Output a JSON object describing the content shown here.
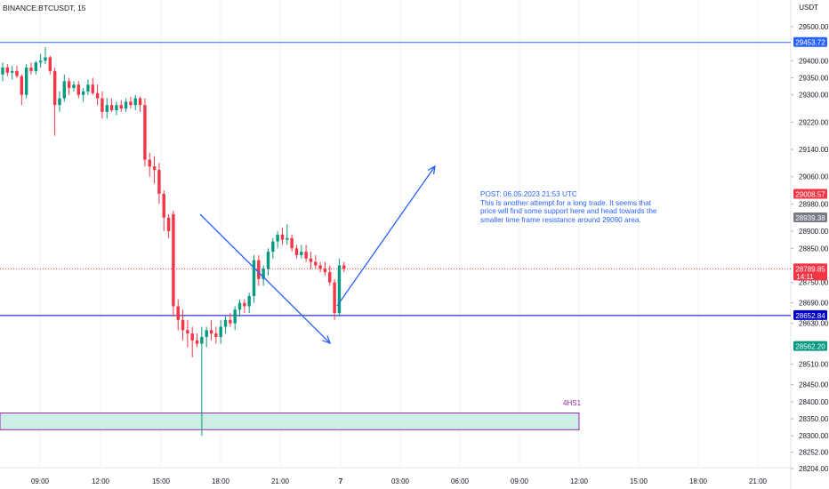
{
  "chart_data": {
    "type": "candlestick",
    "title": "BINANCE:BTCUSDT, 15",
    "currency": "USDT",
    "ylim": [
      28180,
      29570
    ],
    "y_ticks": [
      "29500.00",
      "29400.00",
      "29350.00",
      "29300.00",
      "29220.00",
      "29140.00",
      "29060.00",
      "28980.00",
      "28900.00",
      "28850.00",
      "28750.00",
      "28690.00",
      "28630.00",
      "28510.00",
      "28450.00",
      "28400.00",
      "28350.00",
      "28300.00",
      "28252.00",
      "28204.00"
    ],
    "x_labels": [
      "09:00",
      "12:00",
      "15:00",
      "18:00",
      "21:00",
      "7",
      "03:00",
      "06:00",
      "09:00",
      "12:00",
      "15:00",
      "18:00",
      "21:00"
    ],
    "price_badges": [
      {
        "value": "29453.72",
        "color": "#2962ff"
      },
      {
        "value": "29008.57",
        "color": "#f23645"
      },
      {
        "value": "28939.38",
        "color": "#787b86"
      },
      {
        "value": "28789.85",
        "sub": "14:11",
        "color": "#f23645"
      },
      {
        "value": "28652.84",
        "color": "#0000c8"
      },
      {
        "value": "28562.20",
        "color": "#089981"
      }
    ],
    "horizontal_lines": [
      29453.72,
      28652.84
    ],
    "current_price": 28789.85,
    "candles": [
      [
        29360,
        29395,
        29340,
        29380
      ],
      [
        29380,
        29390,
        29355,
        29365
      ],
      [
        29365,
        29385,
        29345,
        29370
      ],
      [
        29370,
        29385,
        29350,
        29355
      ],
      [
        29355,
        29360,
        29270,
        29300
      ],
      [
        29300,
        29390,
        29290,
        29380
      ],
      [
        29380,
        29395,
        29360,
        29370
      ],
      [
        29370,
        29400,
        29360,
        29395
      ],
      [
        29395,
        29420,
        29380,
        29400
      ],
      [
        29400,
        29440,
        29390,
        29410
      ],
      [
        29410,
        29415,
        29360,
        29370
      ],
      [
        29370,
        29380,
        29180,
        29270
      ],
      [
        29270,
        29310,
        29250,
        29290
      ],
      [
        29290,
        29360,
        29280,
        29340
      ],
      [
        29340,
        29350,
        29300,
        29320
      ],
      [
        29320,
        29340,
        29310,
        29330
      ],
      [
        29330,
        29340,
        29290,
        29300
      ],
      [
        29300,
        29320,
        29280,
        29310
      ],
      [
        29310,
        29345,
        29300,
        29330
      ],
      [
        29330,
        29350,
        29300,
        29305
      ],
      [
        29305,
        29330,
        29270,
        29290
      ],
      [
        29290,
        29310,
        29230,
        29250
      ],
      [
        29250,
        29290,
        29230,
        29270
      ],
      [
        29270,
        29290,
        29250,
        29255
      ],
      [
        29255,
        29280,
        29240,
        29270
      ],
      [
        29270,
        29285,
        29250,
        29260
      ],
      [
        29260,
        29290,
        29250,
        29280
      ],
      [
        29280,
        29295,
        29260,
        29270
      ],
      [
        29270,
        29300,
        29255,
        29290
      ],
      [
        29290,
        29295,
        29250,
        29270
      ],
      [
        29270,
        29290,
        29090,
        29110
      ],
      [
        29110,
        29130,
        29060,
        29090
      ],
      [
        29090,
        29120,
        29040,
        29080
      ],
      [
        29080,
        29100,
        28980,
        29010
      ],
      [
        29010,
        29020,
        28900,
        28940
      ],
      [
        28940,
        28950,
        28880,
        28900
      ],
      [
        28950,
        28960,
        28650,
        28680
      ],
      [
        28680,
        28700,
        28610,
        28640
      ],
      [
        28640,
        28670,
        28580,
        28610
      ],
      [
        28610,
        28640,
        28560,
        28600
      ],
      [
        28600,
        28620,
        28530,
        28580
      ],
      [
        28580,
        28600,
        28560,
        28570
      ],
      [
        28570,
        28620,
        28300,
        28590
      ],
      [
        28590,
        28620,
        28560,
        28610
      ],
      [
        28610,
        28640,
        28580,
        28600
      ],
      [
        28600,
        28620,
        28570,
        28590
      ],
      [
        28590,
        28640,
        28570,
        28620
      ],
      [
        28620,
        28650,
        28600,
        28640
      ],
      [
        28640,
        28660,
        28620,
        28630
      ],
      [
        28630,
        28680,
        28610,
        28670
      ],
      [
        28670,
        28700,
        28650,
        28690
      ],
      [
        28690,
        28700,
        28660,
        28680
      ],
      [
        28680,
        28720,
        28660,
        28710
      ],
      [
        28710,
        28830,
        28690,
        28815
      ],
      [
        28815,
        28830,
        28740,
        28760
      ],
      [
        28760,
        28800,
        28740,
        28790
      ],
      [
        28790,
        28850,
        28770,
        28840
      ],
      [
        28840,
        28880,
        28820,
        28870
      ],
      [
        28870,
        28900,
        28850,
        28890
      ],
      [
        28890,
        28910,
        28860,
        28875
      ],
      [
        28875,
        28920,
        28860,
        28880
      ],
      [
        28880,
        28890,
        28840,
        28850
      ],
      [
        28850,
        28860,
        28820,
        28830
      ],
      [
        28830,
        28860,
        28820,
        28840
      ],
      [
        28840,
        28860,
        28810,
        28820
      ],
      [
        28820,
        28840,
        28790,
        28810
      ],
      [
        28810,
        28830,
        28790,
        28800
      ],
      [
        28800,
        28810,
        28780,
        28790
      ],
      [
        28790,
        28810,
        28770,
        28780
      ],
      [
        28780,
        28800,
        28740,
        28750
      ],
      [
        28750,
        28760,
        28640,
        28660
      ],
      [
        28660,
        28820,
        28650,
        28800
      ],
      [
        28800,
        28810,
        28780,
        28790
      ]
    ],
    "zone": {
      "label": "4HS1",
      "top": 28367,
      "bottom": 28318
    },
    "annotation": [
      "POST: 06.05.2023 21:53 UTC",
      "This is another attempt for a long trade. It seems that",
      "price will find some support here and head towards the",
      "smaller time frame resistance around 29090 area."
    ],
    "colors": {
      "up": "#089981",
      "down": "#f23645",
      "line": "#2962ff",
      "zone_fill": "#cdeee4",
      "zone_border": "#9c27b0",
      "grid": "#f0f3fa"
    }
  }
}
